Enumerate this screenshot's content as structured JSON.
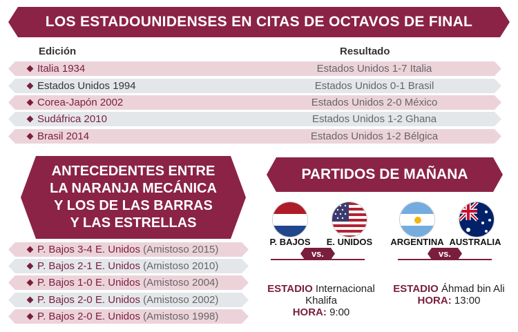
{
  "header": {
    "title": "LOS ESTADOUNIDENSES EN CITAS DE OCTAVOS DE FINAL"
  },
  "table": {
    "col_edition": "Edición",
    "col_result": "Resultado",
    "rows": [
      {
        "edition": "Italia 1934",
        "result": "Estados Unidos 1-7 Italia"
      },
      {
        "edition": "Estados Unidos 1994",
        "result": "Estados Unidos 0-1 Brasil"
      },
      {
        "edition": "Corea-Japón 2002",
        "result": "Estados Unidos 2-0 México"
      },
      {
        "edition": "Sudáfrica 2010",
        "result": "Estados Unidos 1-2 Ghana"
      },
      {
        "edition": "Brasil 2014",
        "result": "Estados Unidos 1-2 Bélgica"
      }
    ]
  },
  "history": {
    "title_lines": [
      "ANTECEDENTES ENTRE",
      "LA NARANJA MECÁNICA",
      "Y LOS DE LAS BARRAS",
      "Y LAS ESTRELLAS"
    ],
    "rows": [
      {
        "score": "P. Bajos 3-4 E. Unidos",
        "note": "(Amistoso 2015)"
      },
      {
        "score": "P. Bajos 2-1 E. Unidos",
        "note": "(Amistoso 2010)"
      },
      {
        "score": "P. Bajos 1-0 E. Unidos",
        "note": "(Amistoso 2004)"
      },
      {
        "score": "P. Bajos 2-0 E. Unidos",
        "note": "(Amistoso 2002)"
      },
      {
        "score": "P. Bajos 2-0 E. Unidos",
        "note": "(Amistoso 1998)"
      }
    ]
  },
  "tomorrow": {
    "title": "PARTIDOS DE MAÑANA",
    "matches": [
      {
        "home": "P. BAJOS",
        "away": "E. UNIDOS",
        "vs": "vs.",
        "stadium_label": "ESTADIO",
        "stadium_line1": "Internacional",
        "stadium_line2": "Khalifa",
        "time_label": "HORA:",
        "time": "9:00"
      },
      {
        "home": "ARGENTINA",
        "away": "AUSTRALIA",
        "vs": "vs.",
        "stadium_label": "ESTADIO",
        "stadium_line1": "Áhmad bin Ali",
        "stadium_line2": "",
        "time_label": "HORA:",
        "time": "13:00"
      }
    ]
  },
  "colors": {
    "accent": "#8b2346",
    "pink_row": "#ecd3da",
    "grey_row": "#e3e7ea"
  }
}
